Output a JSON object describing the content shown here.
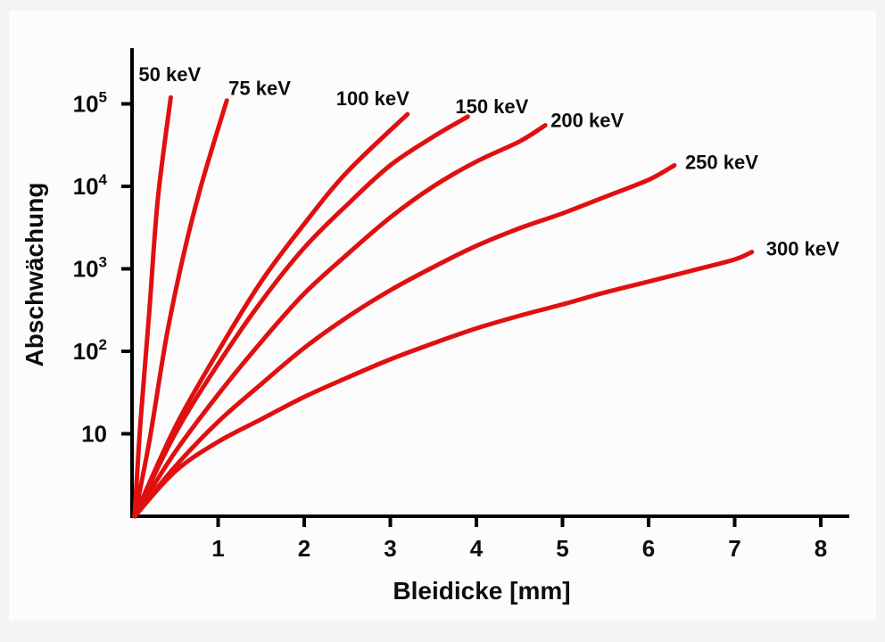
{
  "chart_data": {
    "type": "line",
    "xlabel": "Bleidicke [mm]",
    "ylabel": "Abschwächung",
    "xlim": [
      0,
      8.2
    ],
    "ylim": [
      1,
      500000
    ],
    "y_scale": "log",
    "grid": false,
    "line_color": "#e01010",
    "x_ticks": [
      {
        "value": 1,
        "label": "1"
      },
      {
        "value": 2,
        "label": "2"
      },
      {
        "value": 3,
        "label": "3"
      },
      {
        "value": 4,
        "label": "4"
      },
      {
        "value": 5,
        "label": "5"
      },
      {
        "value": 6,
        "label": "6"
      },
      {
        "value": 7,
        "label": "7"
      },
      {
        "value": 8,
        "label": "8"
      }
    ],
    "y_ticks": [
      {
        "value": 10,
        "base": "10",
        "exp": ""
      },
      {
        "value": 100,
        "base": "10",
        "exp": "2"
      },
      {
        "value": 1000,
        "base": "10",
        "exp": "3"
      },
      {
        "value": 10000,
        "base": "10",
        "exp": "4"
      },
      {
        "value": 100000,
        "base": "10",
        "exp": "5"
      }
    ],
    "series": [
      {
        "name": "50 keV",
        "x": [
          0.03,
          0.1,
          0.2,
          0.3,
          0.45
        ],
        "y": [
          1,
          15,
          300,
          7000,
          120000
        ]
      },
      {
        "name": "75 keV",
        "x": [
          0.03,
          0.2,
          0.4,
          0.6,
          0.8,
          1.1
        ],
        "y": [
          1,
          8,
          150,
          1500,
          10000,
          110000
        ]
      },
      {
        "name": "100 keV",
        "x": [
          0.03,
          0.5,
          1.0,
          1.5,
          2.0,
          2.5,
          3.2
        ],
        "y": [
          1,
          12,
          100,
          700,
          3500,
          15000,
          75000
        ]
      },
      {
        "name": "150 keV",
        "x": [
          0.03,
          0.5,
          1.0,
          1.5,
          2.0,
          2.5,
          3.0,
          3.5,
          3.9
        ],
        "y": [
          1,
          10,
          70,
          400,
          1800,
          6000,
          18000,
          40000,
          70000
        ]
      },
      {
        "name": "200 keV",
        "x": [
          0.03,
          0.5,
          1.0,
          1.5,
          2.0,
          2.5,
          3.0,
          3.5,
          4.0,
          4.5,
          4.8
        ],
        "y": [
          1,
          6,
          30,
          130,
          500,
          1500,
          4200,
          10000,
          20000,
          35000,
          55000
        ]
      },
      {
        "name": "250 keV",
        "x": [
          0.03,
          0.5,
          1.0,
          1.5,
          2.0,
          2.5,
          3.0,
          3.5,
          4.0,
          4.5,
          5.0,
          5.5,
          6.0,
          6.3
        ],
        "y": [
          1,
          4,
          14,
          40,
          110,
          260,
          550,
          1050,
          1900,
          3100,
          4700,
          7500,
          12000,
          18000
        ]
      },
      {
        "name": "300 keV",
        "x": [
          0.03,
          0.5,
          1.0,
          1.5,
          2.0,
          2.5,
          3.0,
          3.5,
          4.0,
          4.5,
          5.0,
          5.5,
          6.0,
          6.5,
          7.0,
          7.2
        ],
        "y": [
          1,
          3.5,
          8,
          15,
          28,
          48,
          80,
          125,
          190,
          270,
          370,
          520,
          700,
          950,
          1300,
          1600
        ]
      }
    ]
  }
}
